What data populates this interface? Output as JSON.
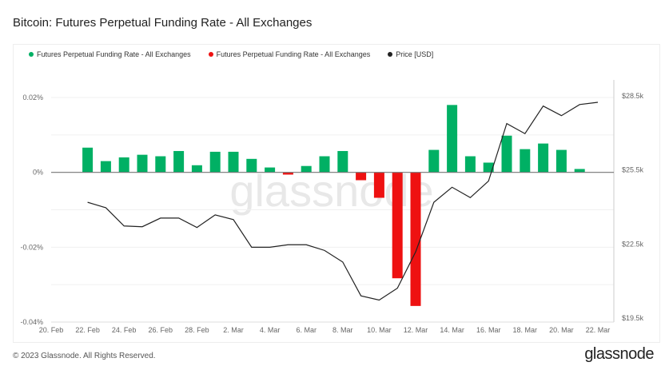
{
  "title": "Bitcoin: Futures Perpetual Funding Rate - All Exchanges",
  "footer": "© 2023 Glassnode. All Rights Reserved.",
  "logo": "glassnode",
  "watermark": "glassnode",
  "chart_data": {
    "type": "bar",
    "title": "Bitcoin: Futures Perpetual Funding Rate - All Exchanges",
    "legend": [
      {
        "name": "Futures Perpetual Funding Rate - All Exchanges",
        "color": "#00b064"
      },
      {
        "name": "Futures Perpetual Funding Rate - All Exchanges",
        "color": "#ee1111"
      },
      {
        "name": "Price [USD]",
        "color": "#222222"
      }
    ],
    "legend_position": "top-left",
    "grid": true,
    "x_ticks": [
      "20. Feb",
      "22. Feb",
      "24. Feb",
      "26. Feb",
      "28. Feb",
      "2. Mar",
      "4. Mar",
      "6. Mar",
      "8. Mar",
      "10. Mar",
      "12. Mar",
      "14. Mar",
      "16. Mar",
      "18. Mar",
      "20. Mar",
      "22. Mar"
    ],
    "y_left_ticks": [
      "0.02%",
      "0%",
      "-0.02%",
      "-0.04%"
    ],
    "y_right_ticks": [
      "$28.5k",
      "$25.5k",
      "$22.5k",
      "$19.5k"
    ],
    "y_left_range_pct": [
      -0.04,
      0.02
    ],
    "y_right_range_usd": [
      19500,
      28500
    ],
    "x_range": [
      "2023-02-20",
      "2023-03-22"
    ],
    "funding_rate": {
      "dates": [
        "2023-02-22",
        "2023-02-23",
        "2023-02-24",
        "2023-02-25",
        "2023-02-26",
        "2023-02-27",
        "2023-02-28",
        "2023-03-01",
        "2023-03-02",
        "2023-03-03",
        "2023-03-04",
        "2023-03-05",
        "2023-03-06",
        "2023-03-07",
        "2023-03-08",
        "2023-03-09",
        "2023-03-10",
        "2023-03-11",
        "2023-03-12",
        "2023-03-13",
        "2023-03-14",
        "2023-03-15",
        "2023-03-16",
        "2023-03-17",
        "2023-03-18",
        "2023-03-19",
        "2023-03-20",
        "2023-03-21"
      ],
      "values_pct": [
        0.0066,
        0.003,
        0.004,
        0.0047,
        0.0043,
        0.0057,
        0.0019,
        0.0055,
        0.0055,
        0.0036,
        0.0013,
        -0.0006,
        0.0017,
        0.0043,
        0.0057,
        -0.0021,
        -0.0068,
        -0.0283,
        -0.0357,
        0.006,
        0.018,
        0.0043,
        0.0026,
        0.0098,
        0.0062,
        0.0077,
        0.006,
        0.0009
      ]
    },
    "price": {
      "name": "Price [USD]",
      "dates": [
        "2023-02-22",
        "2023-02-23",
        "2023-02-24",
        "2023-02-25",
        "2023-02-26",
        "2023-02-27",
        "2023-02-28",
        "2023-03-01",
        "2023-03-02",
        "2023-03-03",
        "2023-03-04",
        "2023-03-05",
        "2023-03-06",
        "2023-03-07",
        "2023-03-08",
        "2023-03-09",
        "2023-03-10",
        "2023-03-11",
        "2023-03-12",
        "2023-03-13",
        "2023-03-14",
        "2023-03-15",
        "2023-03-16",
        "2023-03-17",
        "2023-03-18",
        "2023-03-19",
        "2023-03-20",
        "2023-03-21",
        "2023-03-22"
      ],
      "values": [
        24190,
        23970,
        23230,
        23200,
        23550,
        23550,
        23170,
        23680,
        23490,
        22370,
        22370,
        22470,
        22470,
        22240,
        21770,
        20400,
        20230,
        20710,
        22180,
        24190,
        24800,
        24380,
        25050,
        27380,
        26970,
        28090,
        27700,
        28150,
        28240
      ]
    }
  }
}
